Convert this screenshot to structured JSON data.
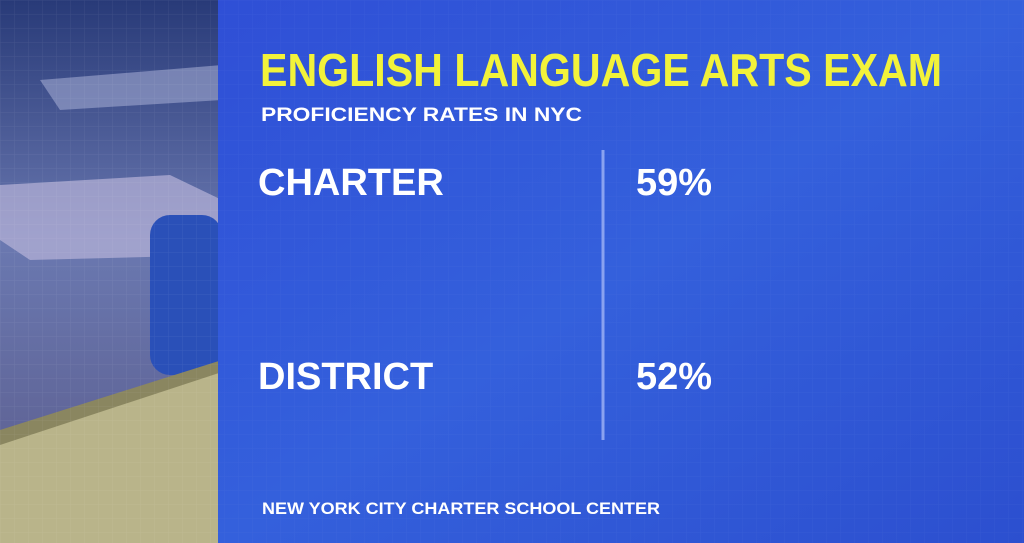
{
  "header": {
    "title": "ENGLISH LANGUAGE ARTS EXAM",
    "subtitle": "PROFICIENCY RATES IN NYC"
  },
  "table": {
    "rows": [
      [
        "CHARTER",
        "59%"
      ],
      [
        "DISTRICT",
        "52%"
      ]
    ]
  },
  "source": "NEW YORK CITY CHARTER SCHOOL CENTER"
}
